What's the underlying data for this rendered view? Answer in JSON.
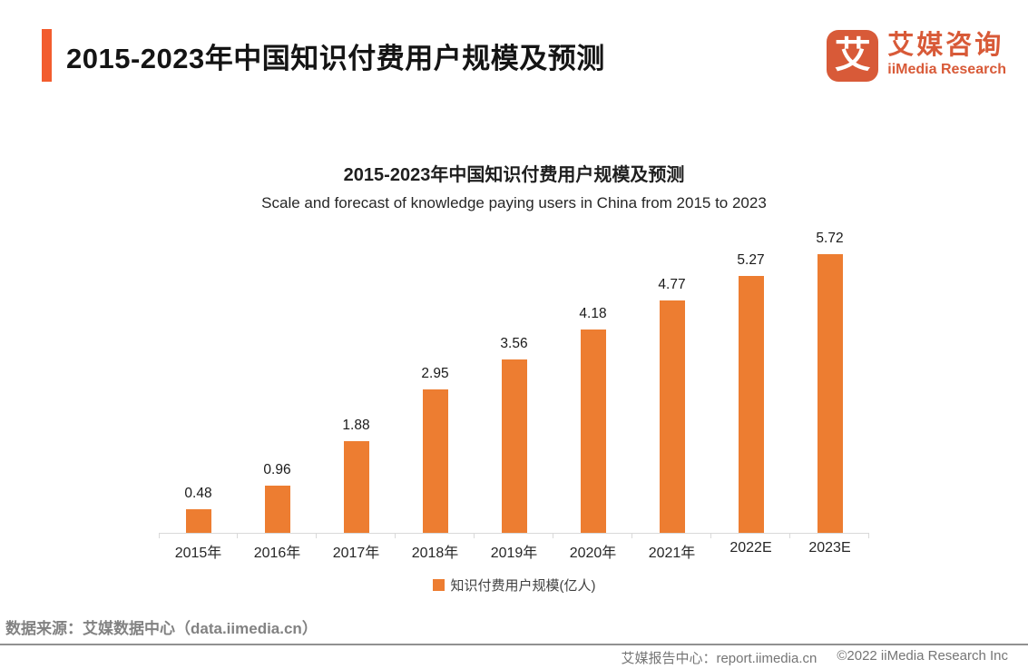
{
  "header": {
    "title": "2015-2023年中国知识付费用户规模及预测"
  },
  "logo": {
    "icon_glyph": "艾",
    "brand_cn": "艾媒咨询",
    "brand_en": "iiMedia Research"
  },
  "chart_data": {
    "type": "bar",
    "title": "2015-2023年中国知识付费用户规模及预测",
    "subtitle": "Scale and forecast of knowledge paying users in China from 2015 to 2023",
    "categories": [
      "2015年",
      "2016年",
      "2017年",
      "2018年",
      "2019年",
      "2020年",
      "2021年",
      "2022E",
      "2023E"
    ],
    "values": [
      0.48,
      0.96,
      1.88,
      2.95,
      3.56,
      4.18,
      4.77,
      5.27,
      5.72
    ],
    "legend": [
      "知识付费用户规模(亿人)"
    ],
    "legend_position": "bottom",
    "value_labels": true,
    "grid": false,
    "xlabel": "",
    "ylabel": "",
    "unit": "亿人",
    "ylim": [
      0,
      6
    ]
  },
  "source_note": "数据来源：艾媒数据中心（data.iimedia.cn）",
  "footer": {
    "report_center": "艾媒报告中心：report.iimedia.cn",
    "copyright": "©2022  iiMedia Research Inc"
  },
  "colors": {
    "accent": "#F25C2E",
    "brand": "#D85A38",
    "bar": "#ED7D31",
    "muted": "#828282",
    "axis": "#D9D9D9",
    "divider": "#919191"
  }
}
